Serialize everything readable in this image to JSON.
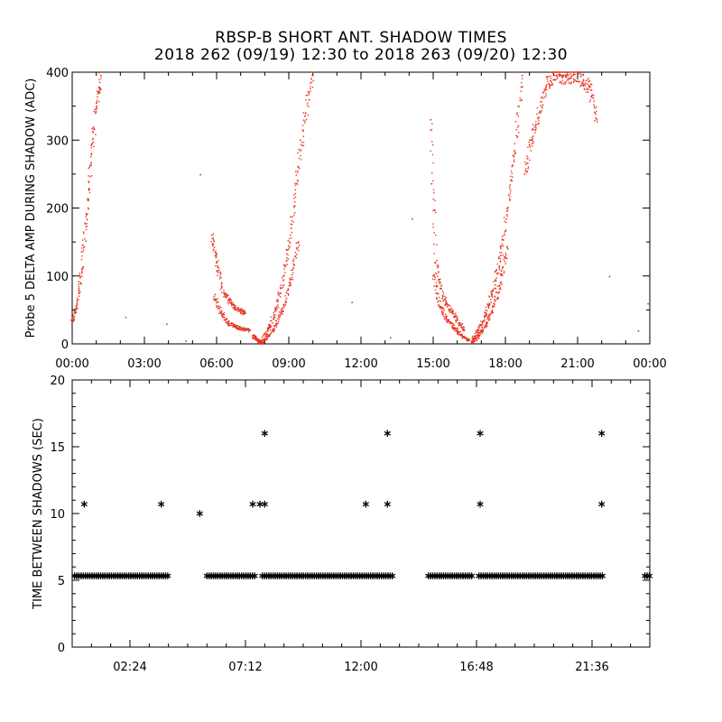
{
  "titles": {
    "line1": "RBSP-B SHORT ANT. SHADOW TIMES",
    "line2": "2018 262 (09/19) 12:30 to 2018 263 (09/20) 12:30"
  },
  "chart_data": [
    {
      "type": "scatter",
      "title": "",
      "xlabel": "",
      "ylabel": "Probe 5 DELTA AMP DURING SHADOW (ADC)",
      "xunit": "hours",
      "xlim": [
        0,
        24
      ],
      "ylim": [
        0,
        400
      ],
      "xticks": [
        "00:00",
        "03:00",
        "06:00",
        "09:00",
        "12:00",
        "15:00",
        "18:00",
        "21:00",
        "00:00"
      ],
      "yticks": [
        0,
        100,
        200,
        300,
        400
      ],
      "color": "#e8321e",
      "series": [
        {
          "segment": "early rise",
          "x": [
            0.0,
            0.2,
            0.4,
            0.6,
            0.8,
            1.0,
            1.2
          ],
          "y": [
            30,
            60,
            110,
            190,
            280,
            350,
            395
          ]
        },
        {
          "segment": "first shadow descent upper",
          "x": [
            5.8,
            6.0,
            6.3,
            6.6,
            6.9,
            7.2
          ],
          "y": [
            160,
            120,
            75,
            60,
            50,
            45
          ]
        },
        {
          "segment": "first shadow descent lower",
          "x": [
            5.9,
            6.2,
            6.5,
            6.8,
            7.1,
            7.4
          ],
          "y": [
            70,
            45,
            30,
            25,
            22,
            20
          ]
        },
        {
          "segment": "first shadow minimum",
          "x": [
            7.5,
            7.7,
            7.8,
            7.9
          ],
          "y": [
            12,
            6,
            2,
            0
          ]
        },
        {
          "segment": "first shadow rise upper",
          "x": [
            7.9,
            8.2,
            8.5,
            8.8,
            9.1,
            9.4,
            9.7,
            10.0
          ],
          "y": [
            5,
            25,
            55,
            100,
            170,
            260,
            340,
            395
          ]
        },
        {
          "segment": "first shadow rise lower",
          "x": [
            7.9,
            8.2,
            8.5,
            8.8,
            9.1,
            9.4
          ],
          "y": [
            2,
            12,
            30,
            55,
            95,
            150
          ]
        },
        {
          "segment": "second shadow descent upper",
          "x": [
            14.9,
            15.1,
            15.4,
            15.7,
            16.0,
            16.3
          ],
          "y": [
            330,
            120,
            70,
            50,
            35,
            20
          ]
        },
        {
          "segment": "second shadow descent lower",
          "x": [
            15.0,
            15.3,
            15.6,
            15.9,
            16.2,
            16.5
          ],
          "y": [
            100,
            55,
            35,
            22,
            12,
            5
          ]
        },
        {
          "segment": "second shadow rise upper",
          "x": [
            16.6,
            16.9,
            17.2,
            17.5,
            17.8,
            18.1,
            18.4,
            18.7
          ],
          "y": [
            3,
            20,
            45,
            80,
            130,
            200,
            280,
            395
          ]
        },
        {
          "segment": "second shadow rise lower",
          "x": [
            16.6,
            16.9,
            17.2,
            17.5,
            17.8,
            18.1
          ],
          "y": [
            2,
            12,
            30,
            55,
            90,
            140
          ]
        },
        {
          "segment": "late scatter",
          "x": [
            18.8,
            19.1,
            19.4,
            19.7,
            20.0,
            20.3,
            20.6,
            20.9,
            21.2,
            21.5,
            21.8
          ],
          "y": [
            250,
            300,
            340,
            380,
            400,
            395,
            390,
            400,
            385,
            380,
            330
          ]
        },
        {
          "segment": "isolated points",
          "x": [
            2.2,
            3.9,
            4.7,
            5.3,
            11.6,
            13.2,
            14.1,
            22.3,
            23.5,
            23.9
          ],
          "y": [
            40,
            30,
            5,
            250,
            62,
            10,
            185,
            100,
            20,
            60
          ]
        }
      ]
    },
    {
      "type": "scatter",
      "title": "",
      "xlabel": "",
      "ylabel": "TIME BETWEEN SHADOWS (SEC)",
      "xunit": "hours",
      "xlim": [
        0,
        24
      ],
      "ylim": [
        0,
        20
      ],
      "xticks": [
        "02:24",
        "07:12",
        "12:00",
        "16:48",
        "21:36"
      ],
      "xtick_positions": [
        2.4,
        7.2,
        12.0,
        16.8,
        21.6
      ],
      "yticks": [
        0,
        5,
        10,
        15,
        20
      ],
      "marker": "asterisk",
      "color": "#000000",
      "baseline_value": 5.33,
      "baseline_segments": [
        [
          0.1,
          4.0
        ],
        [
          5.6,
          7.6
        ],
        [
          7.9,
          13.3
        ],
        [
          14.8,
          16.6
        ],
        [
          16.9,
          22.1
        ],
        [
          23.8,
          24.0
        ]
      ],
      "points": {
        "x": [
          0.5,
          3.7,
          5.3,
          7.5,
          7.8,
          8.0,
          8.0,
          12.2,
          13.1,
          13.1,
          16.95,
          16.95,
          22.0,
          22.0
        ],
        "y": [
          10.7,
          10.7,
          10.0,
          10.7,
          10.7,
          10.7,
          16.0,
          10.7,
          10.7,
          16.0,
          16.0,
          10.7,
          16.0,
          10.7
        ]
      }
    }
  ]
}
